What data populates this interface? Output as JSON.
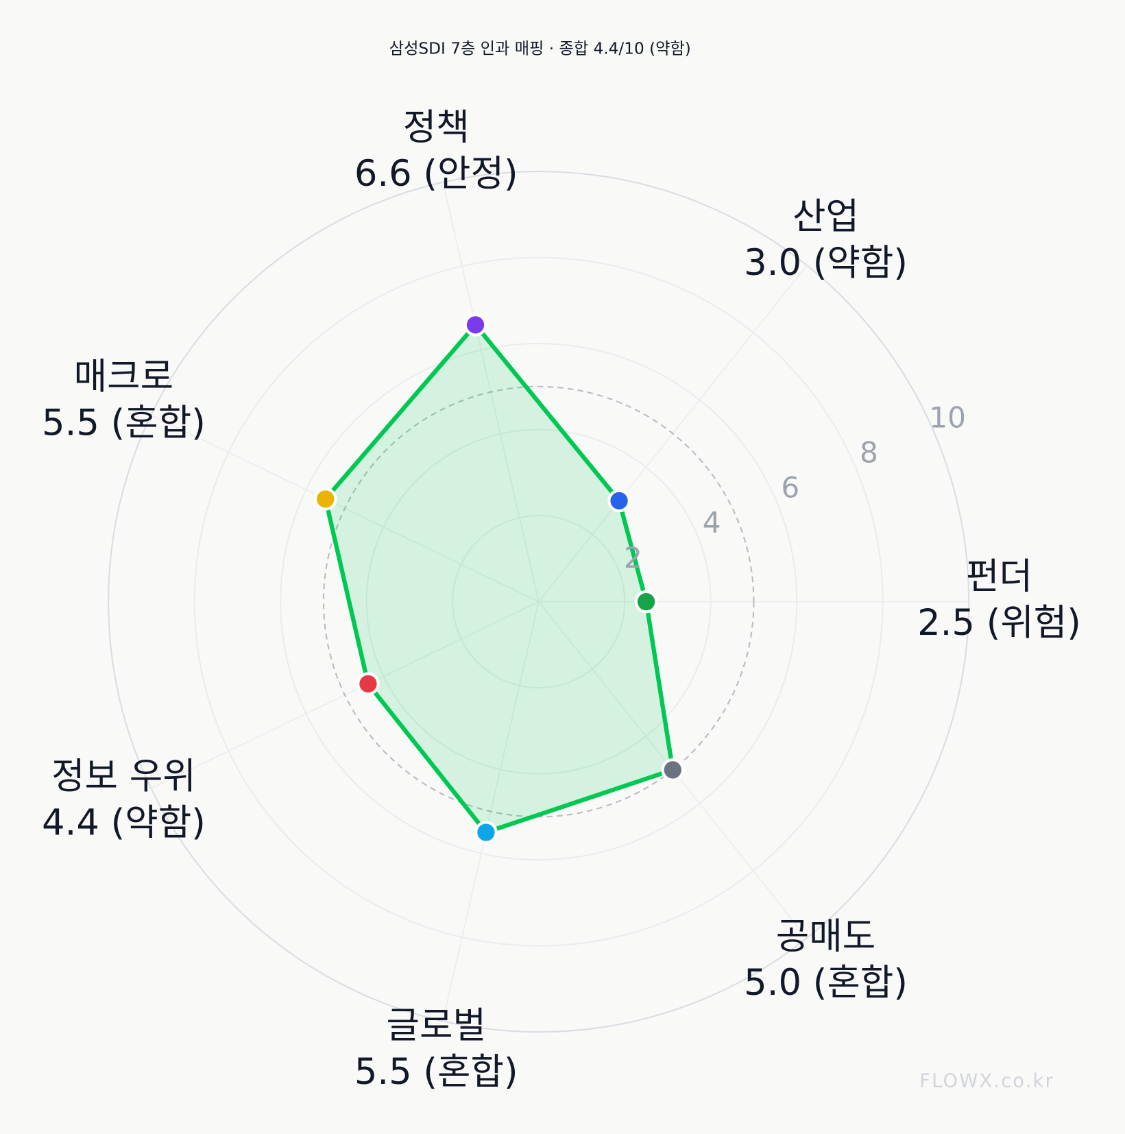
{
  "chart_data": {
    "type": "radar",
    "title": "삼성SDI 7층 인과 매핑 · 종합 4.4/10 (약함)",
    "categories": [
      "펀더",
      "산업",
      "정책",
      "매크로",
      "정보 우위",
      "글로벌",
      "공매도"
    ],
    "values": [
      2.5,
      3.0,
      6.6,
      5.5,
      4.4,
      5.5,
      5.0
    ],
    "value_labels": [
      "2.5 (위험)",
      "3.0 (약함)",
      "6.6 (안정)",
      "5.5 (혼합)",
      "4.4 (약함)",
      "5.5 (혼합)",
      "5.0 (혼합)"
    ],
    "point_colors": [
      "#16a34a",
      "#2563eb",
      "#7c3aed",
      "#eab308",
      "#e53945",
      "#0ea5e9",
      "#6b7280"
    ],
    "color": "#00c853",
    "rlim": [
      0,
      10
    ],
    "rticks": [
      2,
      4,
      6,
      8,
      10
    ],
    "reference_line": 5,
    "watermark": "FLOWX.co.kr"
  }
}
